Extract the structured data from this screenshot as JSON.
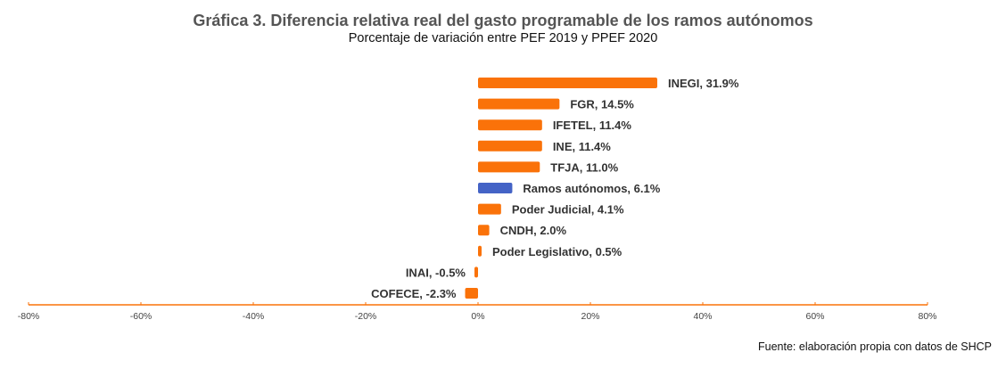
{
  "chart_data": {
    "type": "bar",
    "orientation": "horizontal",
    "title": "Gráfica 3. Diferencia relativa real del gasto programable de los ramos autónomos",
    "subtitle": "Porcentaje de variación entre PEF 2019 y PPEF 2020",
    "source": "Fuente: elaboración propia con datos de SHCP",
    "xlabel": "",
    "ylabel": "",
    "xlim": [
      -80,
      80
    ],
    "xticks": [
      -80,
      -60,
      -40,
      -20,
      0,
      20,
      40,
      60,
      80
    ],
    "tick_suffix": "%",
    "grid": false,
    "legend": "none",
    "colors": {
      "default": "#FA7209",
      "highlight": "#4463C6",
      "axis": "#FA7209"
    },
    "categories": [
      "INEGI",
      "FGR",
      "IFETEL",
      "INE",
      "TFJA",
      "Ramos autónomos",
      "Poder Judicial",
      "CNDH",
      "Poder Legislativo",
      "INAI",
      "COFECE"
    ],
    "values": [
      31.9,
      14.5,
      11.4,
      11.4,
      11.0,
      6.1,
      4.1,
      2.0,
      0.5,
      -0.5,
      -2.3
    ],
    "labels": [
      "INEGI, 31.9%",
      "FGR, 14.5%",
      "IFETEL, 11.4%",
      "INE, 11.4%",
      "TFJA, 11.0%",
      "Ramos autónomos, 6.1%",
      "Poder Judicial, 4.1%",
      "CNDH, 2.0%",
      "Poder Legislativo, 0.5%",
      "INAI, -0.5%",
      "COFECE, -2.3%"
    ],
    "highlight": [
      "Ramos autónomos"
    ]
  }
}
